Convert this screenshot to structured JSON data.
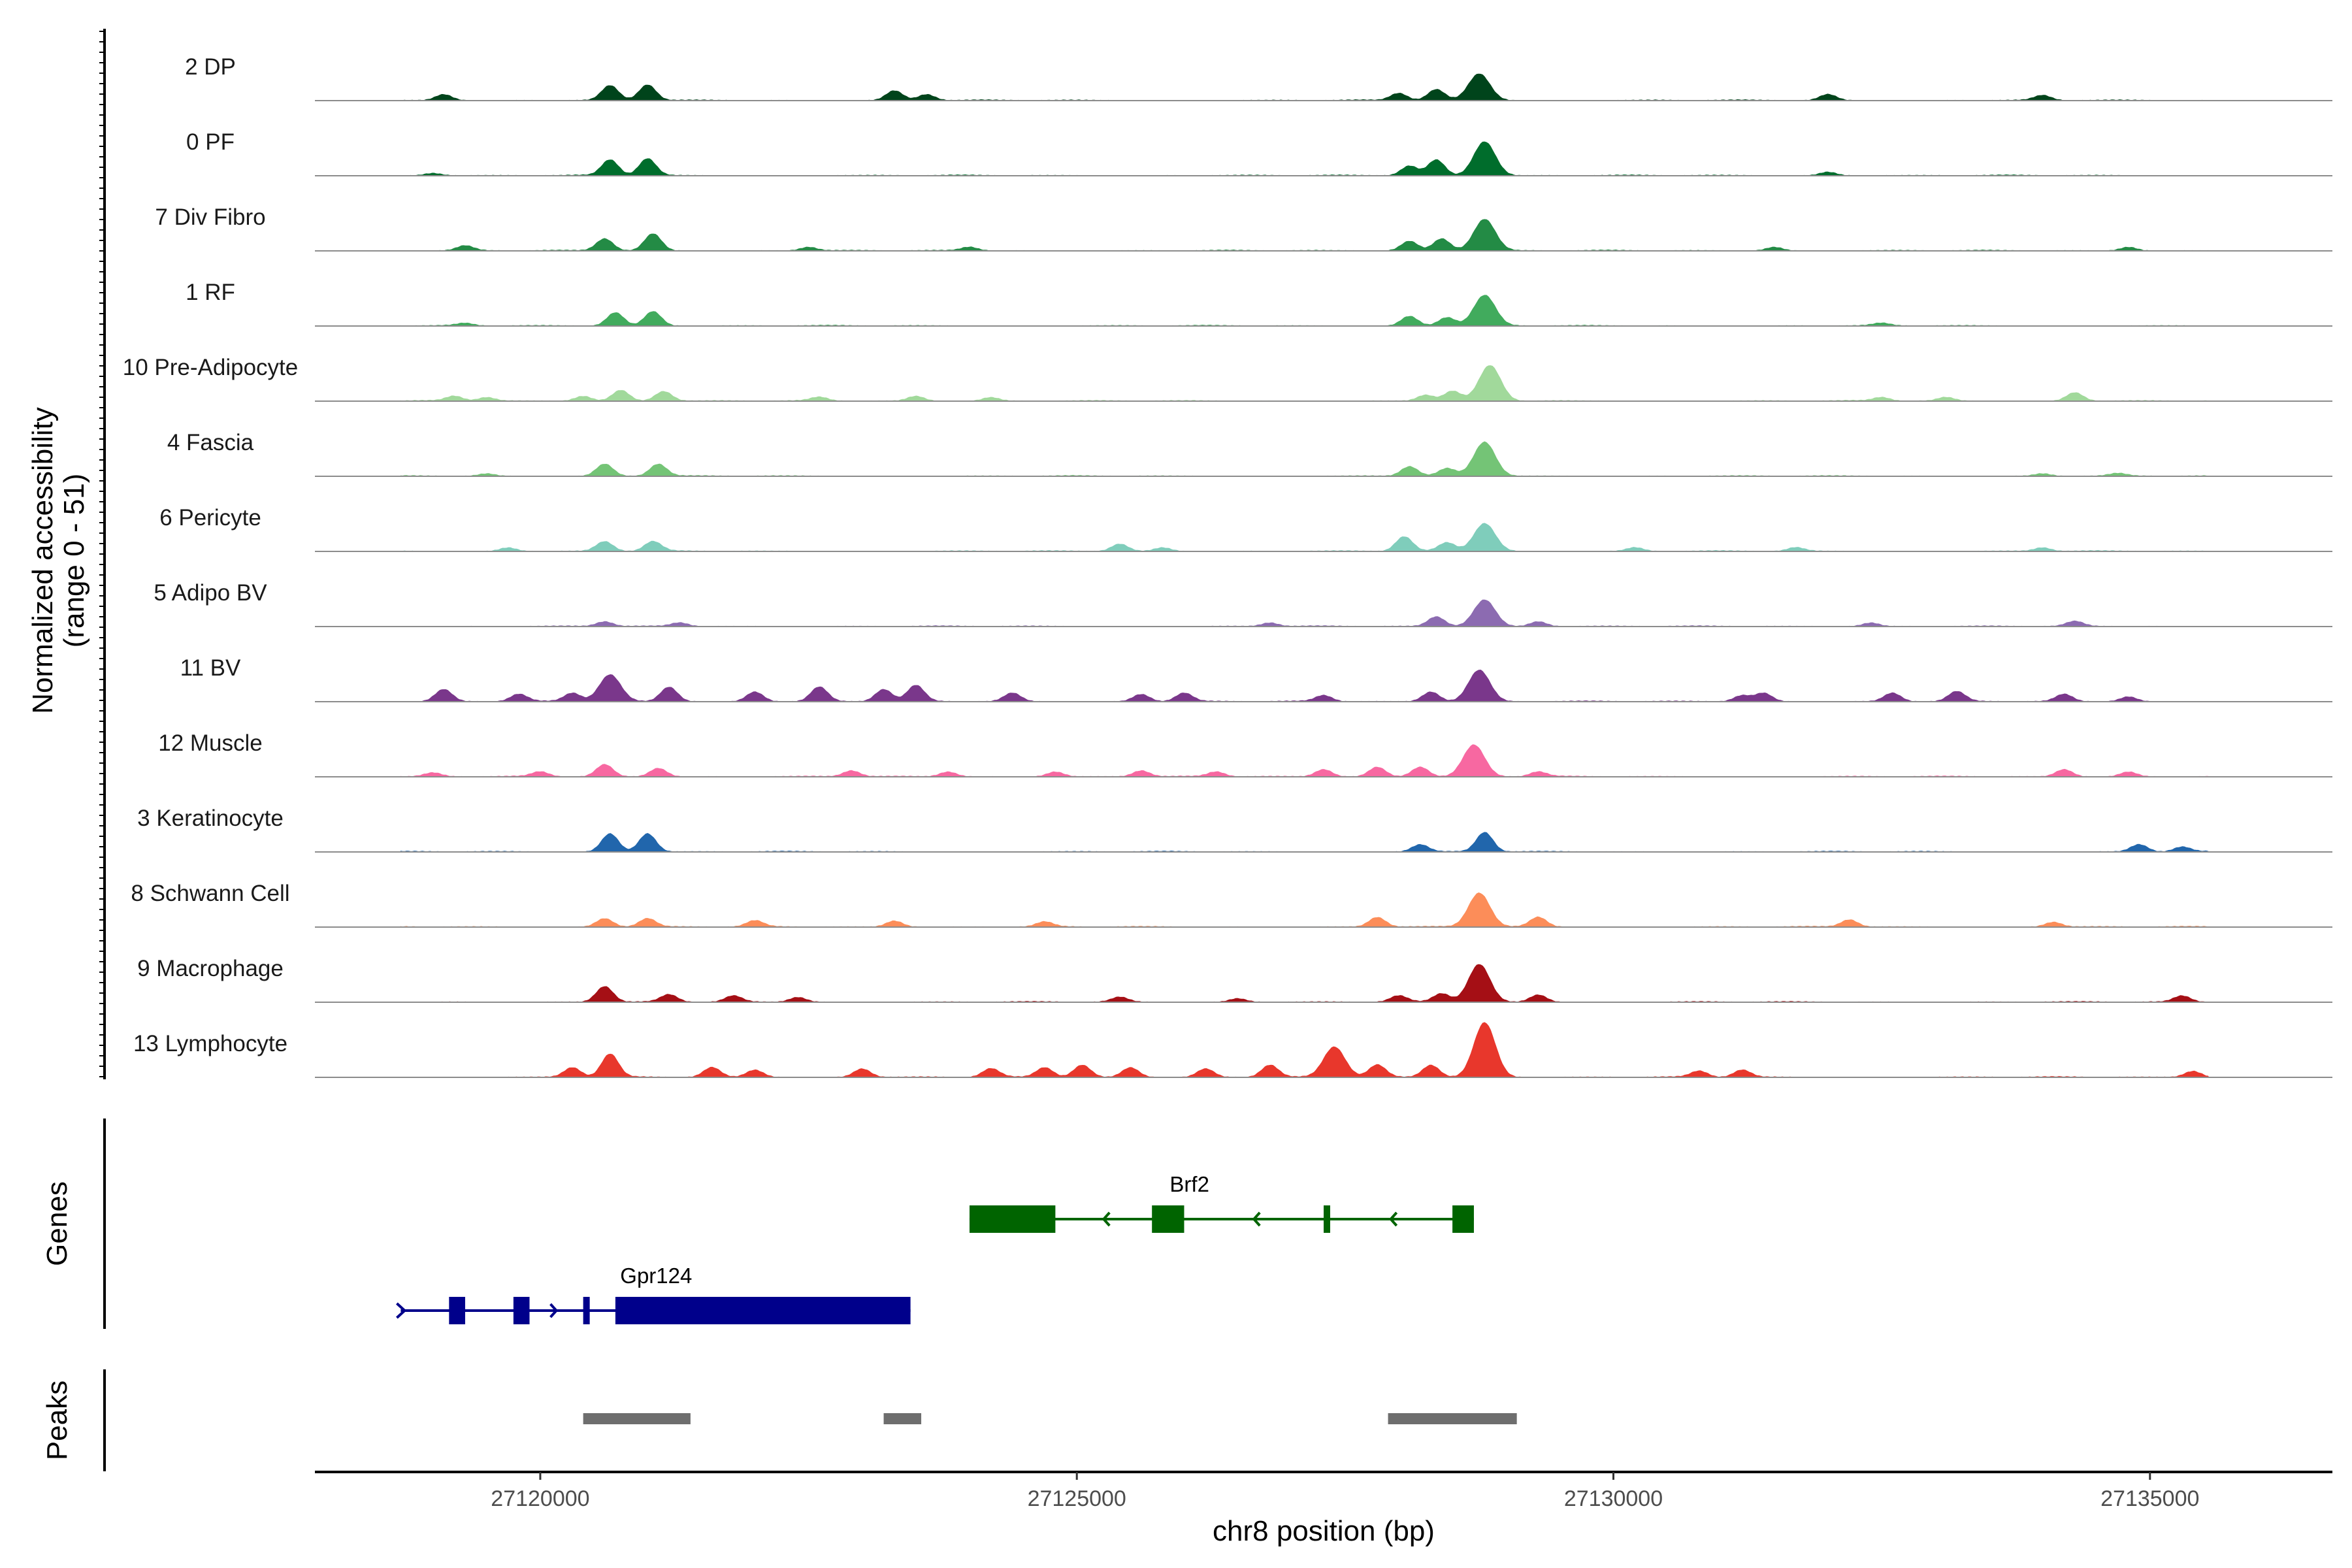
{
  "chart_data": {
    "type": "area",
    "ylabel_line1": "Normalized accessibility",
    "ylabel_line2": "(range 0 - 51)",
    "ylim": [
      0,
      51
    ],
    "xlabel": "chr8 position (bp)",
    "xlim": [
      27117900,
      27136700
    ],
    "x_ticks": [
      {
        "value": 27120000,
        "label": "27120000"
      },
      {
        "value": 27125000,
        "label": "27125000"
      },
      {
        "value": 27130000,
        "label": "27130000"
      },
      {
        "value": 27135000,
        "label": "27135000"
      }
    ],
    "coverage_start": 27118700,
    "coverage_end": 27135550,
    "series": [
      {
        "name": "2 DP",
        "color": "#00441b",
        "peaks": [
          [
            27119100,
            5
          ],
          [
            27120650,
            12
          ],
          [
            27121000,
            13
          ],
          [
            27123300,
            8
          ],
          [
            27123600,
            5
          ],
          [
            27128000,
            6
          ],
          [
            27128350,
            9
          ],
          [
            27128750,
            22
          ],
          [
            27132000,
            5
          ],
          [
            27134000,
            4
          ]
        ]
      },
      {
        "name": "0 PF",
        "color": "#006d2c",
        "peaks": [
          [
            27119000,
            2
          ],
          [
            27120650,
            13
          ],
          [
            27121000,
            14
          ],
          [
            27128100,
            8
          ],
          [
            27128350,
            13
          ],
          [
            27128800,
            28
          ],
          [
            27132000,
            3
          ]
        ]
      },
      {
        "name": "7 Div Fibro",
        "color": "#238b45",
        "peaks": [
          [
            27119300,
            4
          ],
          [
            27120600,
            10
          ],
          [
            27121050,
            14
          ],
          [
            27122500,
            3
          ],
          [
            27124000,
            3
          ],
          [
            27128100,
            8
          ],
          [
            27128400,
            10
          ],
          [
            27128800,
            26
          ],
          [
            27131500,
            3
          ],
          [
            27134800,
            3
          ]
        ]
      },
      {
        "name": "1 RF",
        "color": "#41ab5d",
        "peaks": [
          [
            27119300,
            2
          ],
          [
            27120700,
            11
          ],
          [
            27121050,
            12
          ],
          [
            27128100,
            8
          ],
          [
            27128450,
            7
          ],
          [
            27128800,
            25
          ],
          [
            27132500,
            2
          ]
        ]
      },
      {
        "name": "10 Pre-Adipocyte",
        "color": "#a1d99b",
        "peaks": [
          [
            27119200,
            4
          ],
          [
            27119500,
            3
          ],
          [
            27120400,
            4
          ],
          [
            27120750,
            9
          ],
          [
            27121150,
            8
          ],
          [
            27122600,
            3
          ],
          [
            27123500,
            4
          ],
          [
            27124200,
            3
          ],
          [
            27128250,
            5
          ],
          [
            27128500,
            8
          ],
          [
            27128850,
            29
          ],
          [
            27132500,
            3
          ],
          [
            27133100,
            3
          ],
          [
            27134300,
            7
          ]
        ]
      },
      {
        "name": "4 Fascia",
        "color": "#74c476",
        "peaks": [
          [
            27119500,
            2
          ],
          [
            27120600,
            10
          ],
          [
            27121100,
            10
          ],
          [
            27128100,
            8
          ],
          [
            27128450,
            6
          ],
          [
            27128800,
            28
          ],
          [
            27134000,
            2
          ],
          [
            27134700,
            2
          ]
        ]
      },
      {
        "name": "6 Pericyte",
        "color": "#7fcdbb",
        "peaks": [
          [
            27119700,
            3
          ],
          [
            27120600,
            8
          ],
          [
            27121050,
            8
          ],
          [
            27125400,
            6
          ],
          [
            27125800,
            3
          ],
          [
            27128050,
            12
          ],
          [
            27128450,
            7
          ],
          [
            27128800,
            23
          ],
          [
            27130200,
            3
          ],
          [
            27131700,
            3
          ],
          [
            27134000,
            3
          ]
        ]
      },
      {
        "name": "5 Adipo BV",
        "color": "#8c6bb1",
        "peaks": [
          [
            27120600,
            4
          ],
          [
            27121300,
            3
          ],
          [
            27126800,
            3
          ],
          [
            27128350,
            8
          ],
          [
            27128800,
            22
          ],
          [
            27129300,
            4
          ],
          [
            27132400,
            3
          ],
          [
            27134300,
            4
          ]
        ]
      },
      {
        "name": "11 BV",
        "color": "#7a378b",
        "peaks": [
          [
            27119100,
            10
          ],
          [
            27119800,
            6
          ],
          [
            27120300,
            7
          ],
          [
            27120650,
            22
          ],
          [
            27121200,
            12
          ],
          [
            27122000,
            8
          ],
          [
            27122600,
            12
          ],
          [
            27123200,
            10
          ],
          [
            27123500,
            13
          ],
          [
            27124400,
            7
          ],
          [
            27125600,
            6
          ],
          [
            27126000,
            7
          ],
          [
            27127300,
            5
          ],
          [
            27128300,
            8
          ],
          [
            27128750,
            26
          ],
          [
            27131200,
            5
          ],
          [
            27131400,
            7
          ],
          [
            27132600,
            7
          ],
          [
            27133200,
            8
          ],
          [
            27134200,
            6
          ],
          [
            27134800,
            4
          ]
        ]
      },
      {
        "name": "12 Muscle",
        "color": "#f768a1",
        "peaks": [
          [
            27119000,
            3
          ],
          [
            27120000,
            4
          ],
          [
            27120600,
            10
          ],
          [
            27121100,
            7
          ],
          [
            27122900,
            5
          ],
          [
            27123800,
            4
          ],
          [
            27124800,
            4
          ],
          [
            27125600,
            5
          ],
          [
            27126300,
            4
          ],
          [
            27127300,
            6
          ],
          [
            27127800,
            8
          ],
          [
            27128200,
            8
          ],
          [
            27128700,
            26
          ],
          [
            27129300,
            4
          ],
          [
            27134200,
            6
          ],
          [
            27134800,
            4
          ]
        ]
      },
      {
        "name": "3 Keratinocyte",
        "color": "#2166ac",
        "peaks": [
          [
            27120650,
            15
          ],
          [
            27121000,
            15
          ],
          [
            27128200,
            6
          ],
          [
            27128800,
            16
          ],
          [
            27134900,
            6
          ],
          [
            27135300,
            4
          ]
        ]
      },
      {
        "name": "8 Schwann Cell",
        "color": "#fc8d59",
        "peaks": [
          [
            27120600,
            7
          ],
          [
            27121000,
            7
          ],
          [
            27122000,
            5
          ],
          [
            27123300,
            5
          ],
          [
            27124700,
            4
          ],
          [
            27127800,
            8
          ],
          [
            27128750,
            28
          ],
          [
            27129300,
            8
          ],
          [
            27132200,
            6
          ],
          [
            27134100,
            4
          ]
        ]
      },
      {
        "name": "9 Macrophage",
        "color": "#a50f15",
        "peaks": [
          [
            27120600,
            13
          ],
          [
            27121200,
            6
          ],
          [
            27121800,
            5
          ],
          [
            27122400,
            4
          ],
          [
            27125400,
            4
          ],
          [
            27126500,
            3
          ],
          [
            27128000,
            5
          ],
          [
            27128400,
            7
          ],
          [
            27128750,
            31
          ],
          [
            27129300,
            6
          ],
          [
            27135300,
            5
          ]
        ]
      },
      {
        "name": "13 Lymphocyte",
        "color": "#e8372c",
        "peaks": [
          [
            27120300,
            8
          ],
          [
            27120650,
            19
          ],
          [
            27121600,
            8
          ],
          [
            27122000,
            6
          ],
          [
            27123000,
            7
          ],
          [
            27124200,
            7
          ],
          [
            27124700,
            8
          ],
          [
            27125050,
            10
          ],
          [
            27125500,
            8
          ],
          [
            27126200,
            7
          ],
          [
            27126800,
            10
          ],
          [
            27127400,
            25
          ],
          [
            27127800,
            10
          ],
          [
            27128300,
            10
          ],
          [
            27128800,
            45
          ],
          [
            27130800,
            5
          ],
          [
            27131200,
            6
          ],
          [
            27135400,
            5
          ]
        ]
      }
    ],
    "genes": [
      {
        "name": "Brf2",
        "strand": "-",
        "color": "#006400",
        "start": 27124000,
        "end": 27128700,
        "exons": [
          [
            27124000,
            27124800
          ],
          [
            27125700,
            27126000
          ],
          [
            27127300,
            27127350
          ],
          [
            27128500,
            27128700
          ]
        ]
      },
      {
        "name": "Gpr124",
        "strand": "+",
        "color": "#00008b",
        "start": 27118700,
        "end": 27123450,
        "exons": [
          [
            27119150,
            27119300
          ],
          [
            27119750,
            27119900
          ],
          [
            27120400,
            27120450
          ],
          [
            27120700,
            27123450
          ]
        ]
      }
    ],
    "peaks_track_label": "Peaks",
    "genes_track_label": "Genes",
    "peak_regions": [
      [
        27120400,
        27121400
      ],
      [
        27123200,
        27123550
      ],
      [
        27127900,
        27129100
      ]
    ],
    "peak_color": "#6e6e6e",
    "grid": false
  }
}
